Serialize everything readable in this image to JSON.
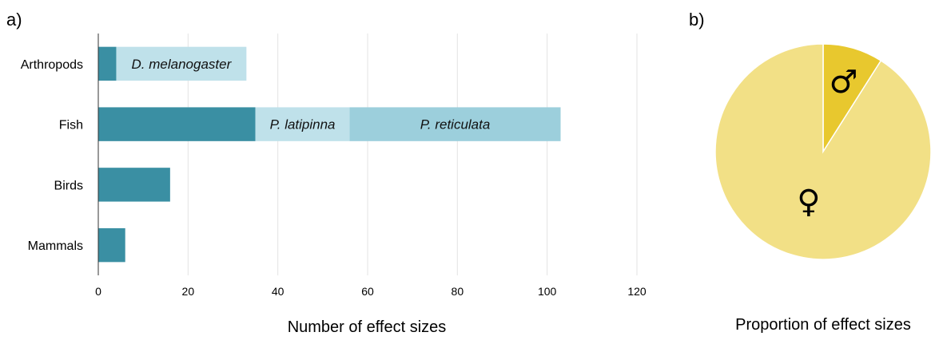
{
  "chart_data": [
    {
      "type": "bar",
      "orientation": "horizontal",
      "stacked": true,
      "panel_label": "a)",
      "categories": [
        "Arthropods",
        "Fish",
        "Birds",
        "Mammals"
      ],
      "series": [
        {
          "name": "",
          "color": "#3a8fa3",
          "values": [
            4,
            35,
            16,
            6
          ]
        },
        {
          "name": "D. melanogaster",
          "color": "#bfe1ea",
          "values": [
            29,
            0,
            0,
            0
          ]
        },
        {
          "name": "P. latipinna",
          "color": "#bfe1ea",
          "values": [
            0,
            21,
            0,
            0
          ]
        },
        {
          "name": "P. reticulata",
          "color": "#9ccfdc",
          "values": [
            0,
            47,
            0,
            0
          ]
        }
      ],
      "xlim": [
        0,
        120
      ],
      "xticks": [
        0,
        20,
        40,
        60,
        80,
        100,
        120
      ],
      "xlabel": "Number of effect sizes",
      "grid": "vertical"
    },
    {
      "type": "pie",
      "panel_label": "b)",
      "slices": [
        {
          "label": "♂",
          "icon": "male-symbol-icon",
          "value": 0.09,
          "color": "#e8c82e"
        },
        {
          "label": "♀",
          "icon": "female-symbol-icon",
          "value": 0.91,
          "color": "#f2e086"
        }
      ],
      "xlabel": "Proportion of effect sizes"
    }
  ]
}
